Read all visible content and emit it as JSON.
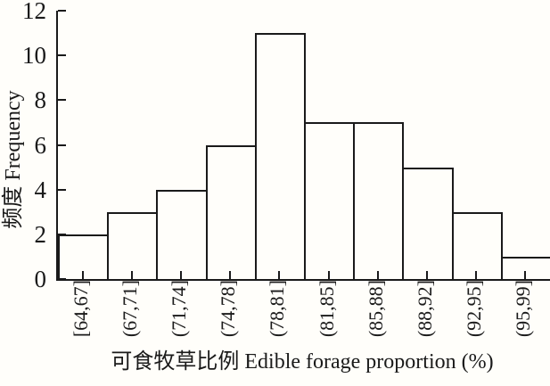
{
  "chart_data": {
    "type": "bar",
    "subtype": "histogram",
    "title": "",
    "xlabel": "可食牧草比例 Edible forage proportion (%)",
    "ylabel": "频度 Frequency",
    "categories": [
      "[64,67]",
      "(67,71]",
      "(71,74]",
      "(74,78]",
      "(78,81]",
      "(81,85]",
      "(85,88]",
      "(88,92]",
      "(92,95]",
      "(95,99]"
    ],
    "values": [
      2,
      3,
      4,
      6,
      11,
      7,
      7,
      5,
      3,
      1
    ],
    "ylim": [
      0,
      12
    ],
    "yticks": [
      0,
      2,
      4,
      6,
      8,
      10,
      12
    ],
    "grid": false,
    "legend": "none",
    "tick_direction": "in",
    "x_tick_label_rotation_deg": 90,
    "colors": {
      "axis": "#1a1a1a",
      "bar_border": "#1a1a1a",
      "bar_fill": "transparent",
      "background": "#fffefa"
    }
  }
}
